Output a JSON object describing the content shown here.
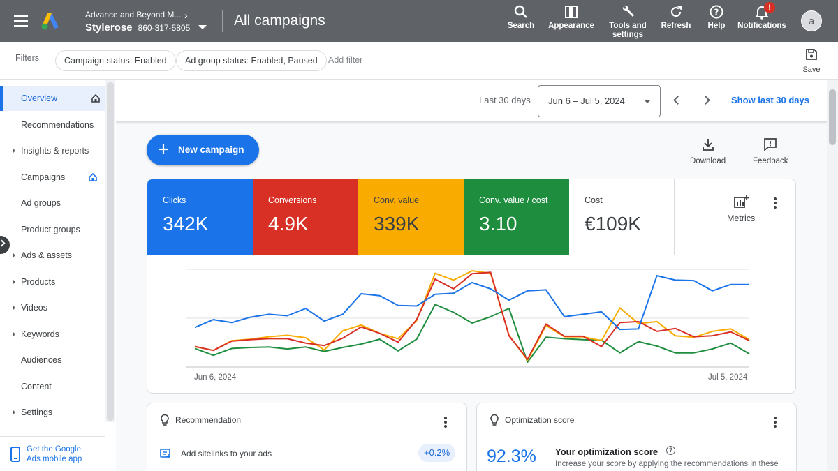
{
  "header": {
    "account_name": "Advance and Beyond M...",
    "brand": "Stylerose",
    "phone": "860-317-5805",
    "page_title": "All campaigns",
    "tools": [
      {
        "label": "Search",
        "icon": "search-icon"
      },
      {
        "label": "Appearance",
        "icon": "appearance-icon"
      },
      {
        "label": "Tools and settings",
        "icon": "wrench-icon"
      },
      {
        "label": "Refresh",
        "icon": "refresh-icon"
      },
      {
        "label": "Help",
        "icon": "help-icon"
      },
      {
        "label": "Notifications",
        "icon": "bell-icon",
        "badge": "!"
      }
    ],
    "avatar_letter": "a"
  },
  "filters": {
    "label": "Filters",
    "chips": [
      "Campaign status: Enabled",
      "Ad group status: Enabled, Paused"
    ],
    "add_filter": "Add filter",
    "save_label": "Save"
  },
  "sidebar": {
    "items": [
      {
        "label": "Overview",
        "active": true,
        "home": true,
        "expandable": false
      },
      {
        "label": "Recommendations",
        "active": false,
        "home": false,
        "expandable": false
      },
      {
        "label": "Insights & reports",
        "active": false,
        "home": false,
        "expandable": true
      },
      {
        "label": "Campaigns",
        "active": false,
        "home": true,
        "expandable": false
      },
      {
        "label": "Ad groups",
        "active": false,
        "home": false,
        "expandable": false
      },
      {
        "label": "Product groups",
        "active": false,
        "home": false,
        "expandable": false
      },
      {
        "label": "Ads & assets",
        "active": false,
        "home": false,
        "expandable": true
      },
      {
        "label": "Products",
        "active": false,
        "home": false,
        "expandable": true
      },
      {
        "label": "Videos",
        "active": false,
        "home": false,
        "expandable": true
      },
      {
        "label": "Keywords",
        "active": false,
        "home": false,
        "expandable": true
      },
      {
        "label": "Audiences",
        "active": false,
        "home": false,
        "expandable": false
      },
      {
        "label": "Content",
        "active": false,
        "home": false,
        "expandable": false
      },
      {
        "label": "Settings",
        "active": false,
        "home": false,
        "expandable": true
      }
    ],
    "mobile_app": "Get the Google Ads mobile app"
  },
  "datebar": {
    "preset": "Last 30 days",
    "range": "Jun 6 – Jul 5, 2024",
    "show_last": "Show last 30 days"
  },
  "actions": {
    "new_campaign": "New campaign",
    "download": "Download",
    "feedback": "Feedback"
  },
  "metrics": [
    {
      "label": "Clicks",
      "value": "342K",
      "color": "#1a73e8",
      "text_color": "#ffffff"
    },
    {
      "label": "Conversions",
      "value": "4.9K",
      "color": "#d93025",
      "text_color": "#ffffff"
    },
    {
      "label": "Conv. value",
      "value": "339K",
      "color": "#f9ab00",
      "text_color": "#3c4043"
    },
    {
      "label": "Conv. value / cost",
      "value": "3.10",
      "color": "#1e8e3e",
      "text_color": "#ffffff"
    },
    {
      "label": "Cost",
      "value": "€109K",
      "color": "#ffffff",
      "text_color": "#3c4043"
    }
  ],
  "metrics_button": "Metrics",
  "chart_data": {
    "type": "line",
    "x_start_label": "Jun 6, 2024",
    "x_end_label": "Jul 5, 2024",
    "series": [
      {
        "name": "Clicks",
        "color": "#1a73e8",
        "values": [
          40.5,
          48.5,
          45.5,
          51,
          54,
          52.5,
          60,
          47,
          54,
          75,
          73,
          63,
          62.5,
          74.5,
          75.5,
          86.5,
          80,
          68.5,
          78,
          79,
          51.5,
          54,
          56.5,
          38.5,
          39,
          93.5,
          89,
          88.5,
          78,
          84.5,
          84.5
        ]
      },
      {
        "name": "Conversions",
        "color": "#d93025",
        "values": [
          21,
          17,
          26.5,
          28,
          29,
          29,
          24.5,
          22,
          29.5,
          41,
          34.5,
          25.5,
          48.5,
          90,
          80,
          95.5,
          97,
          32,
          8,
          44,
          31.5,
          31.5,
          21,
          45.5,
          46.5,
          36.5,
          39.5,
          31,
          32,
          36,
          27
        ]
      },
      {
        "name": "Conv. value",
        "color": "#f9ab00",
        "values": [
          21,
          17,
          27,
          28.5,
          31,
          32.5,
          30,
          17.5,
          37,
          43,
          34.5,
          29,
          47.5,
          96,
          89,
          98.5,
          96,
          32.5,
          7,
          42.5,
          31,
          31,
          27,
          60.5,
          44.5,
          46.5,
          32,
          30.5,
          36.5,
          39,
          28
        ]
      },
      {
        "name": "Conv. value / cost",
        "color": "#1e8e3e",
        "values": [
          19,
          12,
          19,
          20,
          20.5,
          18.5,
          20.5,
          16,
          20,
          23.5,
          28.5,
          16.5,
          28.5,
          64,
          56,
          45,
          51.5,
          60,
          5,
          30.5,
          29,
          28,
          27.5,
          14.5,
          26,
          21.5,
          14.5,
          14.5,
          18.5,
          24.5,
          13.5
        ]
      }
    ]
  },
  "recommendation_card": {
    "title": "Recommendation",
    "item": "Add sitelinks to your ads",
    "badge": "+0.2%"
  },
  "optimization_card": {
    "title": "Optimization score",
    "score": "92.3%",
    "heading": "Your optimization score",
    "description": "Increase your score by applying the recommendations in these"
  }
}
